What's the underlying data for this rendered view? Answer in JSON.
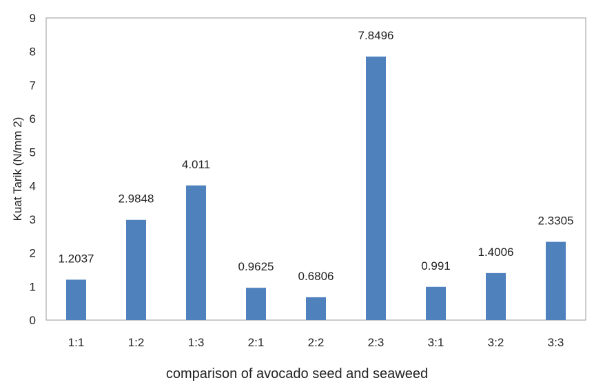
{
  "chart_data": {
    "type": "bar",
    "title": "",
    "xlabel": "comparison of avocado seed and seaweed",
    "ylabel": "Kuat Tarik (N/mm 2)",
    "categories": [
      "1:1",
      "1:2",
      "1:3",
      "2:1",
      "2:2",
      "2:3",
      "3:1",
      "3:2",
      "3:3"
    ],
    "values": [
      1.2037,
      2.9848,
      4.011,
      0.9625,
      0.6806,
      7.8496,
      0.991,
      1.4006,
      2.3305
    ],
    "data_labels": [
      "1.2037",
      "2.9848",
      "4.011",
      "0.9625",
      "0.6806",
      "7.8496",
      "0.991",
      "1.4006",
      "2.3305"
    ],
    "ylim": [
      0,
      9
    ],
    "yticks": [
      "0",
      "1",
      "2",
      "3",
      "4",
      "5",
      "6",
      "7",
      "8",
      "9"
    ],
    "grid": false,
    "legend": "none",
    "colors": {
      "bar": "#4F81BD",
      "axis": "#9a9a9a",
      "text": "#222222"
    }
  }
}
